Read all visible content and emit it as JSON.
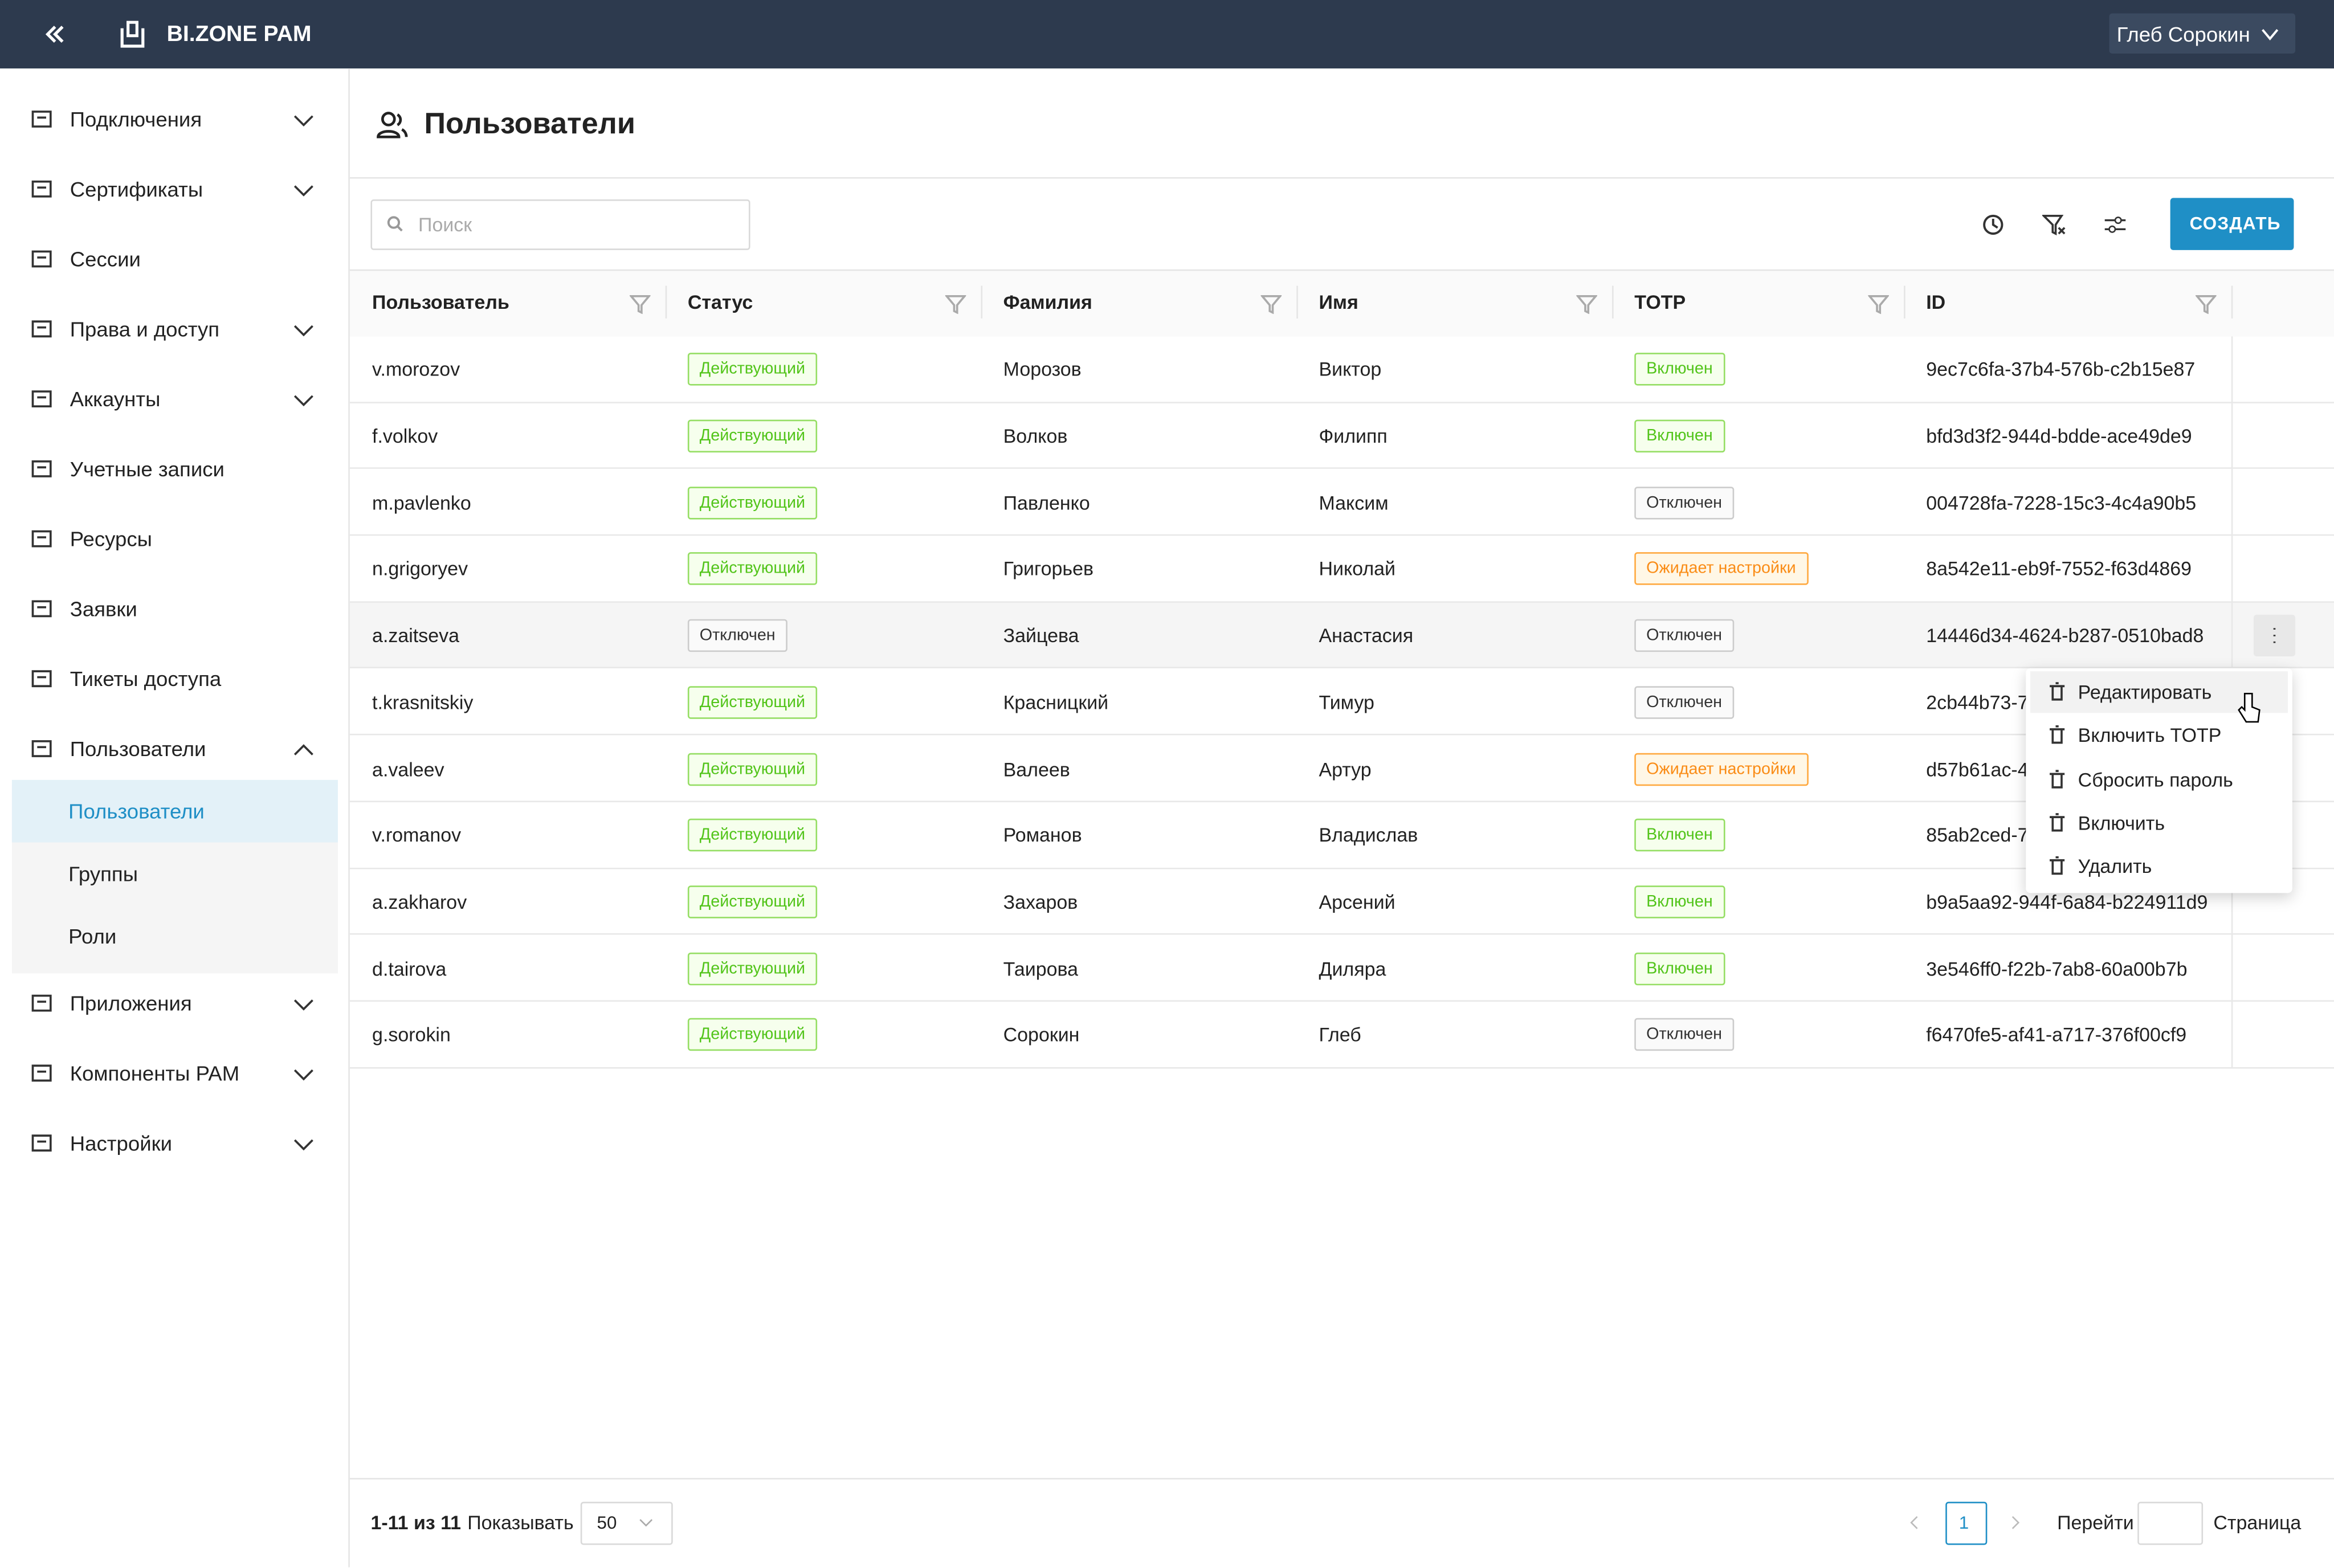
{
  "header": {
    "brand": "BI.ZONE PAM",
    "user": "Глеб Сорокин"
  },
  "sidebar": {
    "items": [
      {
        "label": "Подключения",
        "chevron": "down"
      },
      {
        "label": "Сертификаты",
        "chevron": "down"
      },
      {
        "label": "Сессии",
        "chevron": null
      },
      {
        "label": "Права и доступ",
        "chevron": "down"
      },
      {
        "label": "Аккаунты",
        "chevron": "down"
      },
      {
        "label": "Учетные записи",
        "chevron": null
      },
      {
        "label": "Ресурсы",
        "chevron": null
      },
      {
        "label": "Заявки",
        "chevron": null
      },
      {
        "label": "Тикеты доступа",
        "chevron": null
      },
      {
        "label": "Пользователи",
        "chevron": "up",
        "children": [
          {
            "label": "Пользователи",
            "active": true
          },
          {
            "label": "Группы",
            "active": false
          },
          {
            "label": "Роли",
            "active": false
          }
        ]
      },
      {
        "label": "Приложения",
        "chevron": "down"
      },
      {
        "label": "Компоненты PAM",
        "chevron": "down"
      },
      {
        "label": "Настройки",
        "chevron": "down"
      }
    ]
  },
  "page": {
    "title": "Пользователи",
    "search_placeholder": "Поиск",
    "create": "СОЗДАТЬ"
  },
  "table": {
    "columns": [
      "Пользователь",
      "Статус",
      "Фамилия",
      "Имя",
      "TOTP",
      "ID"
    ],
    "rows": [
      {
        "cells": [
          "v.morozov",
          "Действующий",
          "Морозов",
          "Виктор",
          "Включен",
          "9ec7c6fa-37b4-576b-c2b15e87"
        ],
        "status_color": "green",
        "totp_color": "green"
      },
      {
        "cells": [
          "f.volkov",
          "Действующий",
          "Волков",
          "Филипп",
          "Включен",
          "bfd3d3f2-944d-bdde-ace49de9"
        ],
        "status_color": "green",
        "totp_color": "green"
      },
      {
        "cells": [
          "m.pavlenko",
          "Действующий",
          "Павленко",
          "Максим",
          "Отключен",
          "004728fa-7228-15c3-4c4a90b5"
        ],
        "status_color": "green",
        "totp_color": "gray"
      },
      {
        "cells": [
          "n.grigoryev",
          "Действующий",
          "Григорьев",
          "Николай",
          "Ожидает настройки",
          "8a542e11-eb9f-7552-f63d4869"
        ],
        "status_color": "green",
        "totp_color": "orange"
      },
      {
        "cells": [
          "a.zaitseva",
          "Отключен",
          "Зайцева",
          "Анастасия",
          "Отключен",
          "14446d34-4624-b287-0510bad8"
        ],
        "status_color": "gray",
        "totp_color": "gray",
        "hovered": true
      },
      {
        "cells": [
          "t.krasnitskiy",
          "Действующий",
          "Красницкий",
          "Тимур",
          "Отключен",
          "2cb44b73-7"
        ],
        "status_color": "green",
        "totp_color": "gray"
      },
      {
        "cells": [
          "a.valeev",
          "Действующий",
          "Валеев",
          "Артур",
          "Ожидает настройки",
          "d57b61ac-4"
        ],
        "status_color": "green",
        "totp_color": "orange"
      },
      {
        "cells": [
          "v.romanov",
          "Действующий",
          "Романов",
          "Владислав",
          "Включен",
          "85ab2ced-7"
        ],
        "status_color": "green",
        "totp_color": "green"
      },
      {
        "cells": [
          "a.zakharov",
          "Действующий",
          "Захаров",
          "Арсений",
          "Включен",
          "b9a5aa92-944f-6a84-b224911d9"
        ],
        "status_color": "green",
        "totp_color": "green"
      },
      {
        "cells": [
          "d.tairova",
          "Действующий",
          "Таирова",
          "Диляра",
          "Включен",
          "3e546ff0-f22b-7ab8-60a00b7b"
        ],
        "status_color": "green",
        "totp_color": "green"
      },
      {
        "cells": [
          "g.sorokin",
          "Действующий",
          "Сорокин",
          "Глеб",
          "Отключен",
          "f6470fe5-af41-a717-376f00cf9"
        ],
        "status_color": "green",
        "totp_color": "gray"
      }
    ]
  },
  "menu": {
    "items": [
      "Редактировать",
      "Включить TOTP",
      "Сбросить пароль",
      "Включить",
      "Удалить"
    ]
  },
  "footer": {
    "range": "1-11 из 11",
    "show": "Показывать",
    "page_size": "50",
    "page": "1",
    "goto": "Перейти",
    "page_label": "Страница"
  }
}
